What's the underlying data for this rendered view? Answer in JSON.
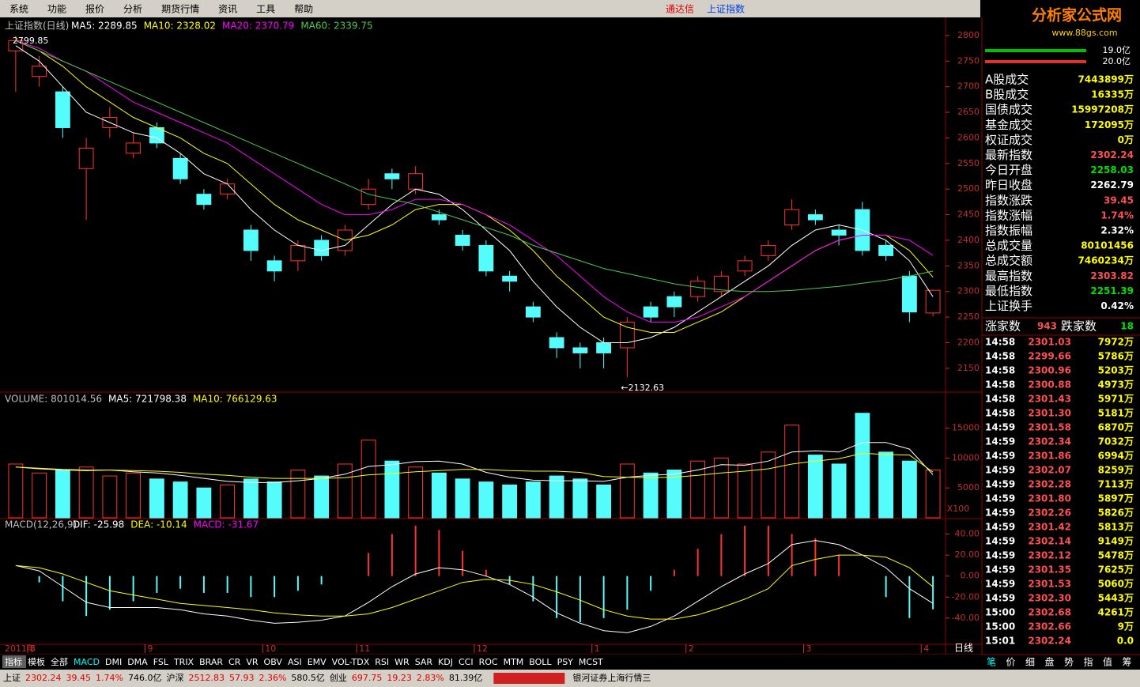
{
  "menu": [
    "系统",
    "功能",
    "报价",
    "分析",
    "期货行情",
    "资讯",
    "工具",
    "帮助"
  ],
  "app_title": "通达信",
  "window_title": "上证指数",
  "logo": {
    "title": "分析家公式网",
    "url": "www.88gs.com"
  },
  "chart_data": [
    {
      "type": "candlestick",
      "title": "上证指数(日线)",
      "year_label": "2011年",
      "x_axis_label": "日线",
      "categories": [
        null,
        "8",
        null,
        null,
        null,
        null,
        "9",
        null,
        null,
        null,
        null,
        "10",
        null,
        null,
        null,
        "11",
        null,
        null,
        null,
        null,
        "12",
        null,
        null,
        null,
        null,
        "1",
        null,
        null,
        null,
        "2",
        null,
        null,
        null,
        null,
        "3",
        null,
        null,
        null,
        null,
        "4"
      ],
      "open": [
        2770,
        2720,
        2690,
        2540,
        2620,
        2570,
        2620,
        2560,
        2490,
        2490,
        2420,
        2360,
        2360,
        2400,
        2380,
        2470,
        2530,
        2500,
        2450,
        2410,
        2390,
        2330,
        2270,
        2210,
        2190,
        2200,
        2190,
        2270,
        2290,
        2290,
        2300,
        2340,
        2370,
        2430,
        2450,
        2420,
        2460,
        2390,
        2330,
        2258.03
      ],
      "high": [
        2799.85,
        2760,
        2700,
        2600,
        2660,
        2610,
        2630,
        2570,
        2500,
        2520,
        2430,
        2370,
        2400,
        2410,
        2430,
        2520,
        2540,
        2545,
        2460,
        2420,
        2400,
        2340,
        2280,
        2220,
        2200,
        2210,
        2250,
        2280,
        2300,
        2330,
        2340,
        2370,
        2400,
        2480,
        2460,
        2430,
        2475,
        2400,
        2340,
        2303.82
      ],
      "low": [
        2690,
        2700,
        2600,
        2440,
        2600,
        2560,
        2580,
        2510,
        2460,
        2480,
        2360,
        2320,
        2340,
        2360,
        2370,
        2460,
        2500,
        2490,
        2430,
        2380,
        2330,
        2300,
        2240,
        2170,
        2150,
        2150,
        2132.63,
        2240,
        2250,
        2280,
        2290,
        2330,
        2360,
        2420,
        2430,
        2390,
        2370,
        2360,
        2240,
        2251.39
      ],
      "close": [
        2790,
        2740,
        2620,
        2580,
        2640,
        2590,
        2590,
        2520,
        2470,
        2510,
        2380,
        2340,
        2390,
        2370,
        2420,
        2500,
        2520,
        2530,
        2440,
        2390,
        2340,
        2320,
        2250,
        2190,
        2180,
        2180,
        2240,
        2250,
        2270,
        2320,
        2330,
        2360,
        2390,
        2460,
        2440,
        2410,
        2380,
        2370,
        2260,
        2302.24
      ],
      "up_color": "#ff3232",
      "down_color": "#54fcfc",
      "annotations": [
        "2799.85",
        "←2132.63"
      ],
      "series": [
        {
          "name": "MA5: 2289.85",
          "color": "#ffffff",
          "values": [
            2780,
            2750,
            2700,
            2650,
            2630,
            2610,
            2600,
            2570,
            2530,
            2510,
            2460,
            2420,
            2390,
            2380,
            2390,
            2430,
            2470,
            2500,
            2490,
            2460,
            2420,
            2380,
            2320,
            2270,
            2230,
            2200,
            2200,
            2210,
            2230,
            2260,
            2290,
            2320,
            2350,
            2390,
            2420,
            2430,
            2420,
            2400,
            2360,
            2289.85
          ]
        },
        {
          "name": "MA10: 2328.02",
          "color": "#ffff00",
          "values": [
            2790,
            2770,
            2740,
            2700,
            2670,
            2640,
            2620,
            2600,
            2570,
            2550,
            2510,
            2470,
            2440,
            2420,
            2400,
            2410,
            2430,
            2460,
            2470,
            2470,
            2450,
            2420,
            2380,
            2330,
            2290,
            2250,
            2230,
            2220,
            2220,
            2240,
            2260,
            2290,
            2320,
            2350,
            2380,
            2400,
            2410,
            2410,
            2380,
            2328.02
          ]
        },
        {
          "name": "MA20: 2370.79",
          "color": "#ff00ff",
          "values": [
            2790,
            2775,
            2750,
            2730,
            2700,
            2670,
            2650,
            2630,
            2610,
            2590,
            2560,
            2530,
            2500,
            2470,
            2450,
            2450,
            2460,
            2480,
            2480,
            2470,
            2450,
            2430,
            2400,
            2370,
            2330,
            2290,
            2260,
            2240,
            2240,
            2250,
            2270,
            2290,
            2320,
            2350,
            2380,
            2400,
            2410,
            2410,
            2400,
            2370.79
          ]
        },
        {
          "name": "MA60: 2339.75",
          "color": "#4ec94e",
          "values": [
            2790,
            2770,
            2750,
            2730,
            2710,
            2690,
            2670,
            2650,
            2630,
            2610,
            2590,
            2570,
            2550,
            2530,
            2510,
            2490,
            2480,
            2470,
            2455,
            2440,
            2425,
            2410,
            2390,
            2375,
            2360,
            2345,
            2335,
            2325,
            2315,
            2308,
            2303,
            2300,
            2300,
            2302,
            2306,
            2310,
            2316,
            2322,
            2330,
            2339.75
          ]
        }
      ],
      "ylim": [
        2105,
        2823
      ],
      "yticks": [
        2150,
        2200,
        2250,
        2300,
        2350,
        2400,
        2450,
        2500,
        2550,
        2600,
        2650,
        2700,
        2750,
        2800
      ]
    },
    {
      "type": "volume",
      "unit_label": "X100",
      "series": [
        {
          "name": "VOLUME: 801014.56",
          "values": [
            9000,
            7500,
            8000,
            8500,
            7000,
            7500,
            6500,
            6000,
            5000,
            5500,
            6500,
            6000,
            8000,
            7000,
            9000,
            13000,
            9500,
            8500,
            7500,
            6500,
            6000,
            5500,
            6000,
            7000,
            6500,
            5500,
            9000,
            7500,
            8000,
            9500,
            10000,
            9000,
            11000,
            15500,
            10500,
            9000,
            17500,
            11000,
            9500,
            8010.15
          ]
        },
        {
          "name": "MA5: 721798.38",
          "color": "#ffffff",
          "values": [
            8500,
            8200,
            8000,
            7900,
            8000,
            7700,
            7500,
            7100,
            6600,
            6100,
            5900,
            5900,
            6200,
            6600,
            7300,
            8600,
            8900,
            9400,
            9500,
            9000,
            7600,
            6800,
            6300,
            6200,
            6200,
            6100,
            6800,
            7100,
            7300,
            8000,
            8900,
            8800,
            9500,
            11000,
            11200,
            11000,
            12600,
            12600,
            11500,
            7217.98
          ]
        },
        {
          "name": "MA10: 766129.63",
          "color": "#ffff00",
          "values": [
            8500,
            8300,
            8100,
            8000,
            8000,
            7900,
            7800,
            7600,
            7300,
            7100,
            6800,
            6600,
            6600,
            6600,
            6700,
            7200,
            7400,
            7700,
            7900,
            8100,
            8100,
            7900,
            7800,
            7800,
            7600,
            6900,
            6800,
            6700,
            6800,
            7100,
            7500,
            7800,
            8200,
            9000,
            9500,
            9900,
            10800,
            10600,
            10500,
            7661.3
          ]
        }
      ],
      "ylim": [
        0,
        20900
      ],
      "yticks": [
        5000,
        10000,
        15000
      ]
    },
    {
      "type": "macd",
      "title": "MACD(12,26,9)",
      "series": [
        {
          "name": "DIF: -25.98",
          "color": "#ffffff",
          "values": [
            10,
            5,
            -10,
            -25,
            -30,
            -30,
            -30,
            -32,
            -36,
            -38,
            -42,
            -45,
            -44,
            -42,
            -38,
            -25,
            -10,
            2,
            8,
            6,
            0,
            -8,
            -20,
            -35,
            -45,
            -52,
            -54,
            -48,
            -38,
            -24,
            -10,
            2,
            12,
            30,
            34,
            30,
            20,
            8,
            -12,
            -25.98
          ]
        },
        {
          "name": "DEA: -10.14",
          "color": "#ffff00",
          "values": [
            10,
            8,
            2,
            -6,
            -14,
            -18,
            -22,
            -26,
            -28,
            -30,
            -32,
            -35,
            -37,
            -38,
            -38,
            -36,
            -30,
            -22,
            -14,
            -6,
            -3,
            -4,
            -8,
            -15,
            -23,
            -32,
            -38,
            -41,
            -41,
            -37,
            -30,
            -22,
            -12,
            10,
            16,
            20,
            20,
            18,
            8,
            -10.14
          ]
        },
        {
          "name": "MACD: -31.67",
          "color": "#ff00ff",
          "values": [
            0,
            -6,
            -24,
            -38,
            -32,
            -24,
            -16,
            -12,
            -16,
            -16,
            -20,
            -20,
            -14,
            -8,
            0,
            22,
            40,
            48,
            44,
            24,
            6,
            -8,
            -24,
            -40,
            -44,
            -40,
            -32,
            -14,
            6,
            26,
            40,
            48,
            48,
            40,
            36,
            20,
            0,
            -20,
            -40,
            -31.67
          ]
        }
      ],
      "ylim": [
        -65,
        54
      ],
      "yticks": [
        {
          "value": -40,
          "label": "-40.00"
        },
        {
          "value": -20,
          "label": "-20.00"
        },
        {
          "value": 0,
          "label": "0.00"
        },
        {
          "value": 20,
          "label": "20.00"
        },
        {
          "value": 40,
          "label": "40.00"
        }
      ]
    }
  ],
  "side_panel": {
    "bars": [
      {
        "label": "19.0亿",
        "color": "#00c000"
      },
      {
        "label": "20.0亿",
        "color": "#e03030"
      }
    ],
    "stats": [
      [
        "A股成交",
        "7443899万",
        "#ffff00"
      ],
      [
        "B股成交",
        "16335万",
        "#ffff00"
      ],
      [
        "国债成交",
        "15997208万",
        "#ffff00"
      ],
      [
        "基金成交",
        "172095万",
        "#ffff00"
      ],
      [
        "权证成交",
        "0万",
        "#ffff00"
      ],
      [
        "最新指数",
        "2302.24",
        "#ff5050"
      ],
      [
        "今日开盘",
        "2258.03",
        "#00e000"
      ],
      [
        "昨日收盘",
        "2262.79",
        "#ffffff"
      ],
      [
        "指数涨跌",
        "39.45",
        "#ff5050"
      ],
      [
        "指数涨幅",
        "1.74%",
        "#ff5050"
      ],
      [
        "指数振幅",
        "2.32%",
        "#ffffff"
      ],
      [
        "总成交量",
        "80101456",
        "#ffff00"
      ],
      [
        "总成交额",
        "7460234万",
        "#ffff00"
      ],
      [
        "最高指数",
        "2303.82",
        "#ff5050"
      ],
      [
        "最低指数",
        "2251.39",
        "#00e000"
      ],
      [
        "上证换手",
        "0.42%",
        "#ffffff"
      ]
    ],
    "up_label": "涨家数",
    "up_count": "943",
    "down_label": "跌家数",
    "down_count": "18",
    "ticks": [
      [
        "14:58",
        "2301.03",
        "7972万"
      ],
      [
        "14:58",
        "2299.66",
        "5786万"
      ],
      [
        "14:58",
        "2300.96",
        "5203万"
      ],
      [
        "14:58",
        "2300.88",
        "4973万"
      ],
      [
        "14:58",
        "2301.43",
        "5971万"
      ],
      [
        "14:58",
        "2301.30",
        "5181万"
      ],
      [
        "14:59",
        "2301.58",
        "6870万"
      ],
      [
        "14:59",
        "2302.34",
        "7032万"
      ],
      [
        "14:59",
        "2301.86",
        "6994万"
      ],
      [
        "14:59",
        "2302.07",
        "8259万"
      ],
      [
        "14:59",
        "2302.28",
        "7113万"
      ],
      [
        "14:59",
        "2301.80",
        "5897万"
      ],
      [
        "14:59",
        "2302.26",
        "5826万"
      ],
      [
        "14:59",
        "2301.42",
        "5813万"
      ],
      [
        "14:59",
        "2302.14",
        "9149万"
      ],
      [
        "14:59",
        "2302.12",
        "5478万"
      ],
      [
        "14:59",
        "2301.35",
        "7625万"
      ],
      [
        "14:59",
        "2301.53",
        "5060万"
      ],
      [
        "14:59",
        "2302.30",
        "5443万"
      ],
      [
        "15:00",
        "2302.68",
        "4261万"
      ],
      [
        "15:00",
        "2302.66",
        "9万"
      ],
      [
        "15:01",
        "2302.24",
        "0.0"
      ]
    ],
    "tabs": [
      "笔",
      "价",
      "细",
      "盘",
      "势",
      "指",
      "值",
      "筹"
    ]
  },
  "indicator_tabs": [
    "指标",
    "模板",
    "全部",
    "MACD",
    "DMI",
    "DMA",
    "FSL",
    "TRIX",
    "BRAR",
    "CR",
    "VR",
    "OBV",
    "ASI",
    "EMV",
    "VOL-TDX",
    "RSI",
    "WR",
    "SAR",
    "KDJ",
    "CCI",
    "ROC",
    "MTM",
    "BOLL",
    "PSY",
    "MCST"
  ],
  "status_bar": [
    [
      "上证",
      "#000000"
    ],
    [
      "2302.24",
      "#e00000"
    ],
    [
      "39.45",
      "#e00000"
    ],
    [
      "1.74%",
      "#e00000"
    ],
    [
      "746.0亿",
      "#000000"
    ],
    [
      "沪深",
      "#000000"
    ],
    [
      "2512.83",
      "#e00000"
    ],
    [
      "57.93",
      "#e00000"
    ],
    [
      "2.36%",
      "#e00000"
    ],
    [
      "580.5亿",
      "#000000"
    ],
    [
      "创业",
      "#000000"
    ],
    [
      "697.75",
      "#e00000"
    ],
    [
      "19.23",
      "#e00000"
    ],
    [
      "2.83%",
      "#e00000"
    ],
    [
      "81.39亿",
      "#000000"
    ]
  ],
  "broker": "银河证券上海行情三"
}
